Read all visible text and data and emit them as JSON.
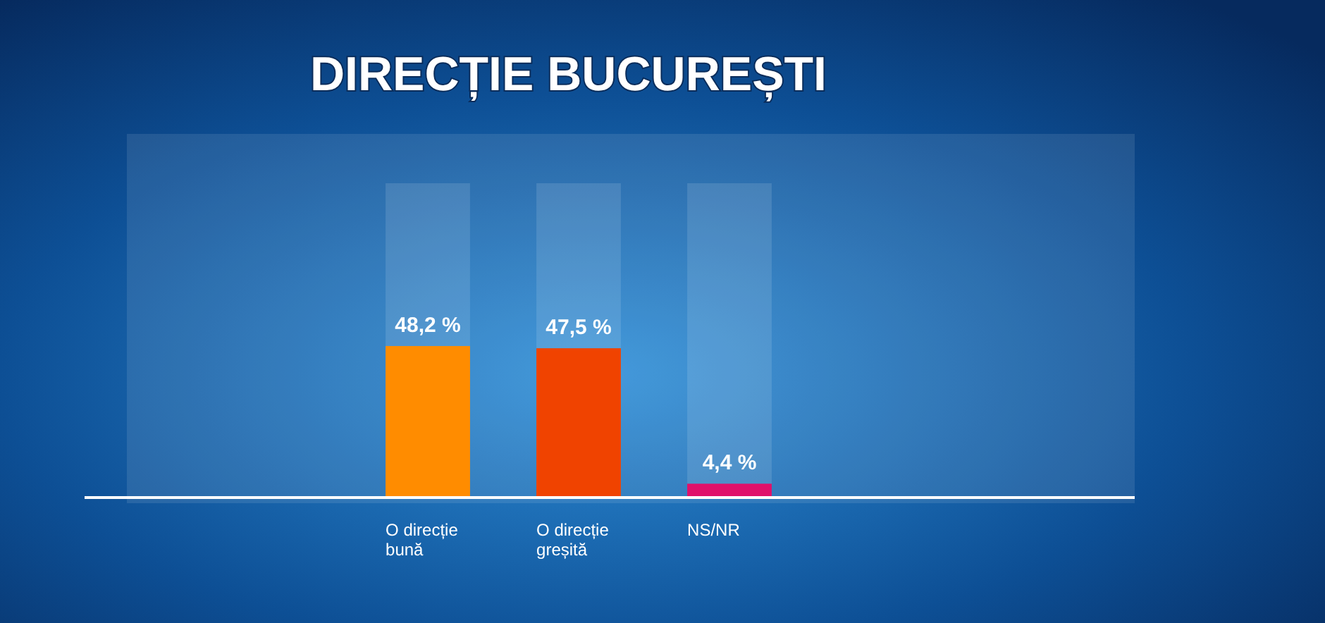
{
  "chart_data": {
    "type": "bar",
    "title": "DIRECȚIE BUCUREȘTI",
    "categories": [
      "O direcție bună",
      "O direcție greșită",
      "NS/NR"
    ],
    "values": [
      48.2,
      47.5,
      4.4
    ],
    "colors": [
      "#ff8c00",
      "#f04300",
      "#e0106a"
    ],
    "value_labels": [
      "48,2 %",
      "47,5 %",
      "4,4 %"
    ],
    "ylim": [
      0,
      100
    ],
    "tick_labels": "x"
  }
}
